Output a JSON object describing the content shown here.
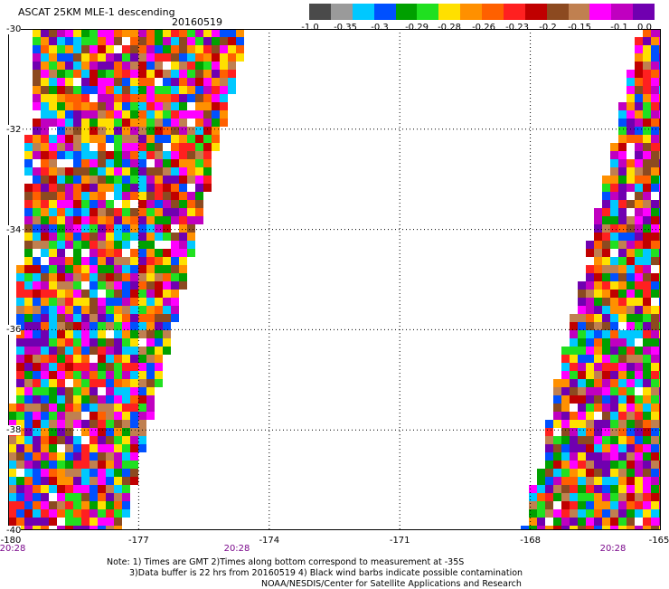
{
  "header": {
    "title": "ASCAT 25KM MLE-1 descending",
    "date": "20160519"
  },
  "colorbar": {
    "labels": [
      "-1.0",
      "-0.35",
      "-0.3",
      "-0.29",
      "-0.28",
      "-0.26",
      "-0.23",
      "-0.2",
      "-0.15",
      "-0.1",
      "0.0"
    ],
    "colors": [
      "#4a4a4a",
      "#9a9a9a",
      "#00c8ff",
      "#0050ff",
      "#00a000",
      "#20e020",
      "#ffe000",
      "#ff9000",
      "#ff6000",
      "#ff2020",
      "#c00000",
      "#8c4a20",
      "#c08050",
      "#ff00ff",
      "#c000c0",
      "#7000b0"
    ]
  },
  "map": {
    "lat_labels": [
      "-30",
      "-32",
      "-34",
      "-36",
      "-38",
      "-40"
    ],
    "lon_labels": [
      "-180",
      "-177",
      "-174",
      "-171",
      "-168",
      "-165"
    ],
    "lat_range": [
      -40,
      -30
    ],
    "lon_range": [
      -180,
      -165
    ],
    "swaths": [
      {
        "times": "20:28",
        "lon_extent_bottom": [
          -180,
          -177.5
        ],
        "lon_extent_top": [
          -179.3,
          -174.6
        ]
      },
      {
        "times": "20:28",
        "lon_extent_bottom": [
          -168.1,
          -165
        ],
        "lon_extent_top": [
          -165.4,
          -165
        ]
      }
    ],
    "time_labels": [
      "20:28",
      "20:28",
      "20:28"
    ],
    "dotted_grid": true
  },
  "notes": {
    "line1": "Note: 1) Times are GMT 2)Times along bottom correspond to measurement at -35S",
    "line2": "3)Data buffer is 22 hrs from 20160519 4) Black wind barbs indicate possible contamination",
    "line3": "NOAA/NESDIS/Center for Satellite Applications and Research"
  }
}
